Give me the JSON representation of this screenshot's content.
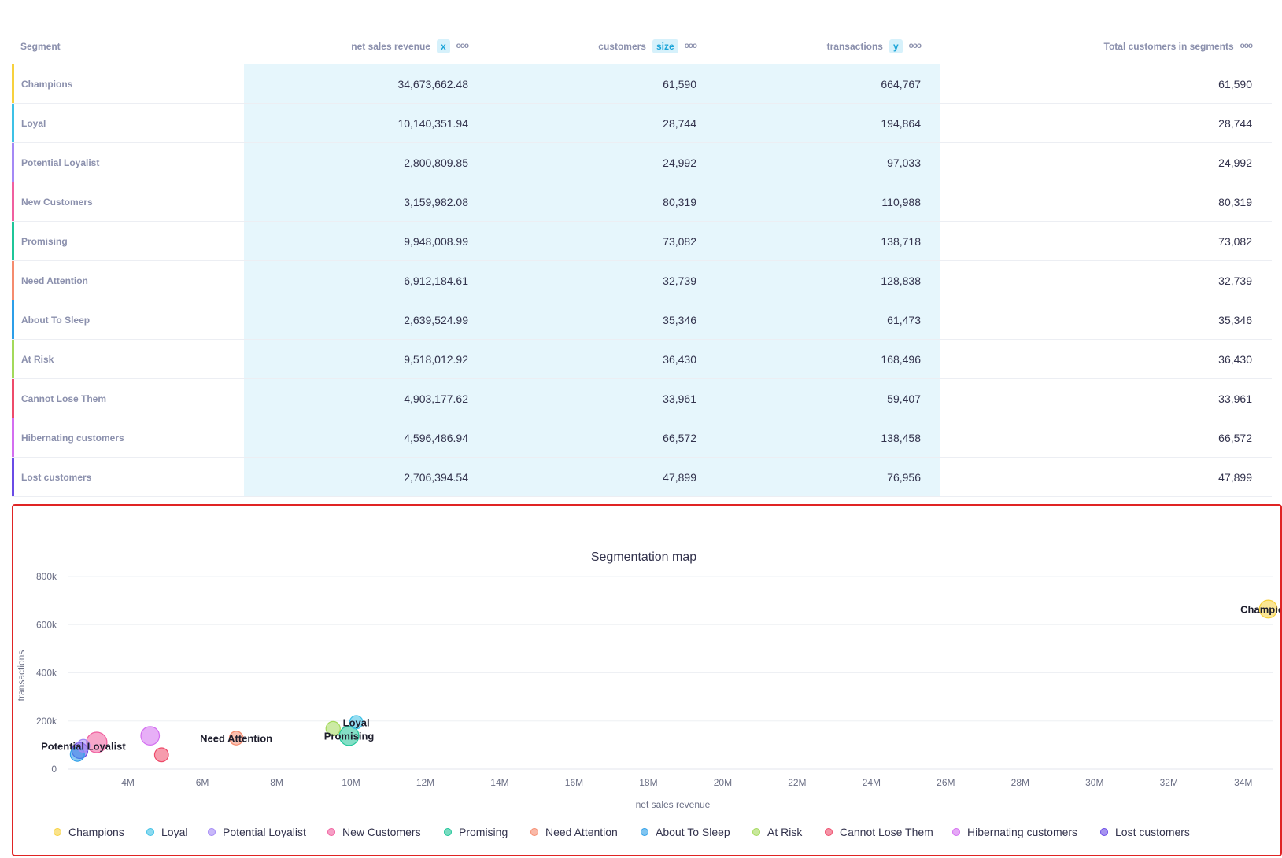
{
  "table": {
    "headers": {
      "segment": "Segment",
      "revenue": "net sales revenue",
      "revenue_role": "x",
      "customers": "customers",
      "customers_role": "size",
      "transactions": "transactions",
      "transactions_role": "y",
      "total": "Total customers in segments",
      "menu_glyph": "ooo"
    },
    "rows": [
      {
        "segment": "Champions",
        "revenue": "34,673,662.48",
        "customers": "61,590",
        "transactions": "664,767",
        "total": "61,590",
        "color": "#f7d13d"
      },
      {
        "segment": "Loyal",
        "revenue": "10,140,351.94",
        "customers": "28,744",
        "transactions": "194,864",
        "total": "28,744",
        "color": "#3ec1e6"
      },
      {
        "segment": "Potential Loyalist",
        "revenue": "2,800,809.85",
        "customers": "24,992",
        "transactions": "97,033",
        "total": "24,992",
        "color": "#a489f5"
      },
      {
        "segment": "New Customers",
        "revenue": "3,159,982.08",
        "customers": "80,319",
        "transactions": "110,988",
        "total": "80,319",
        "color": "#f05f9f"
      },
      {
        "segment": "Promising",
        "revenue": "9,948,008.99",
        "customers": "73,082",
        "transactions": "138,718",
        "total": "73,082",
        "color": "#1fc598"
      },
      {
        "segment": "Need Attention",
        "revenue": "6,912,184.61",
        "customers": "32,739",
        "transactions": "128,838",
        "total": "32,739",
        "color": "#f58b6e"
      },
      {
        "segment": "About To Sleep",
        "revenue": "2,639,524.99",
        "customers": "35,346",
        "transactions": "61,473",
        "total": "35,346",
        "color": "#2c9ee8"
      },
      {
        "segment": "At Risk",
        "revenue": "9,518,012.92",
        "customers": "36,430",
        "transactions": "168,496",
        "total": "36,430",
        "color": "#a3d95a"
      },
      {
        "segment": "Cannot Lose Them",
        "revenue": "4,903,177.62",
        "customers": "33,961",
        "transactions": "59,407",
        "total": "33,961",
        "color": "#ee4b6a"
      },
      {
        "segment": "Hibernating customers",
        "revenue": "4,596,486.94",
        "customers": "66,572",
        "transactions": "138,458",
        "total": "66,572",
        "color": "#d36ef0"
      },
      {
        "segment": "Lost customers",
        "revenue": "2,706,394.54",
        "customers": "47,899",
        "transactions": "76,956",
        "total": "47,899",
        "color": "#6a4be6"
      }
    ]
  },
  "chart_data": {
    "type": "scatter",
    "title": "Segmentation map",
    "xlabel": "net sales revenue",
    "ylabel": "transactions",
    "xlim": [
      2400000,
      35000000
    ],
    "ylim": [
      0,
      800000
    ],
    "x_ticks": [
      4000000,
      6000000,
      8000000,
      10000000,
      12000000,
      14000000,
      16000000,
      18000000,
      20000000,
      22000000,
      24000000,
      26000000,
      28000000,
      30000000,
      32000000,
      34000000
    ],
    "x_tick_labels": [
      "4M",
      "6M",
      "8M",
      "10M",
      "12M",
      "14M",
      "16M",
      "18M",
      "20M",
      "22M",
      "24M",
      "26M",
      "28M",
      "30M",
      "32M",
      "34M"
    ],
    "y_ticks": [
      0,
      200000,
      400000,
      600000,
      800000
    ],
    "y_tick_labels": [
      "0",
      "200k",
      "400k",
      "600k",
      "800k"
    ],
    "grid": true,
    "legend_position": "bottom",
    "series": [
      {
        "name": "Champions",
        "x": 34673662.48,
        "y": 664767,
        "size": 61590,
        "color": "#f7d13d",
        "label": "Champions"
      },
      {
        "name": "Loyal",
        "x": 10140351.94,
        "y": 194864,
        "size": 28744,
        "color": "#3ec1e6",
        "label": "Loyal"
      },
      {
        "name": "Potential Loyalist",
        "x": 2800809.85,
        "y": 97033,
        "size": 24992,
        "color": "#a489f5",
        "label": "Potential Loyalist"
      },
      {
        "name": "New Customers",
        "x": 3159982.08,
        "y": 110988,
        "size": 80319,
        "color": "#f05f9f",
        "label": ""
      },
      {
        "name": "Promising",
        "x": 9948008.99,
        "y": 138718,
        "size": 73082,
        "color": "#1fc598",
        "label": "Promising"
      },
      {
        "name": "Need Attention",
        "x": 6912184.61,
        "y": 128838,
        "size": 32739,
        "color": "#f58b6e",
        "label": "Need Attention"
      },
      {
        "name": "About To Sleep",
        "x": 2639524.99,
        "y": 61473,
        "size": 35346,
        "color": "#2c9ee8",
        "label": ""
      },
      {
        "name": "At Risk",
        "x": 9518012.92,
        "y": 168496,
        "size": 36430,
        "color": "#a3d95a",
        "label": ""
      },
      {
        "name": "Cannot Lose Them",
        "x": 4903177.62,
        "y": 59407,
        "size": 33961,
        "color": "#ee4b6a",
        "label": ""
      },
      {
        "name": "Hibernating customers",
        "x": 4596486.94,
        "y": 138458,
        "size": 66572,
        "color": "#d36ef0",
        "label": ""
      },
      {
        "name": "Lost customers",
        "x": 2706394.54,
        "y": 76956,
        "size": 47899,
        "color": "#6a4be6",
        "label": ""
      }
    ]
  }
}
